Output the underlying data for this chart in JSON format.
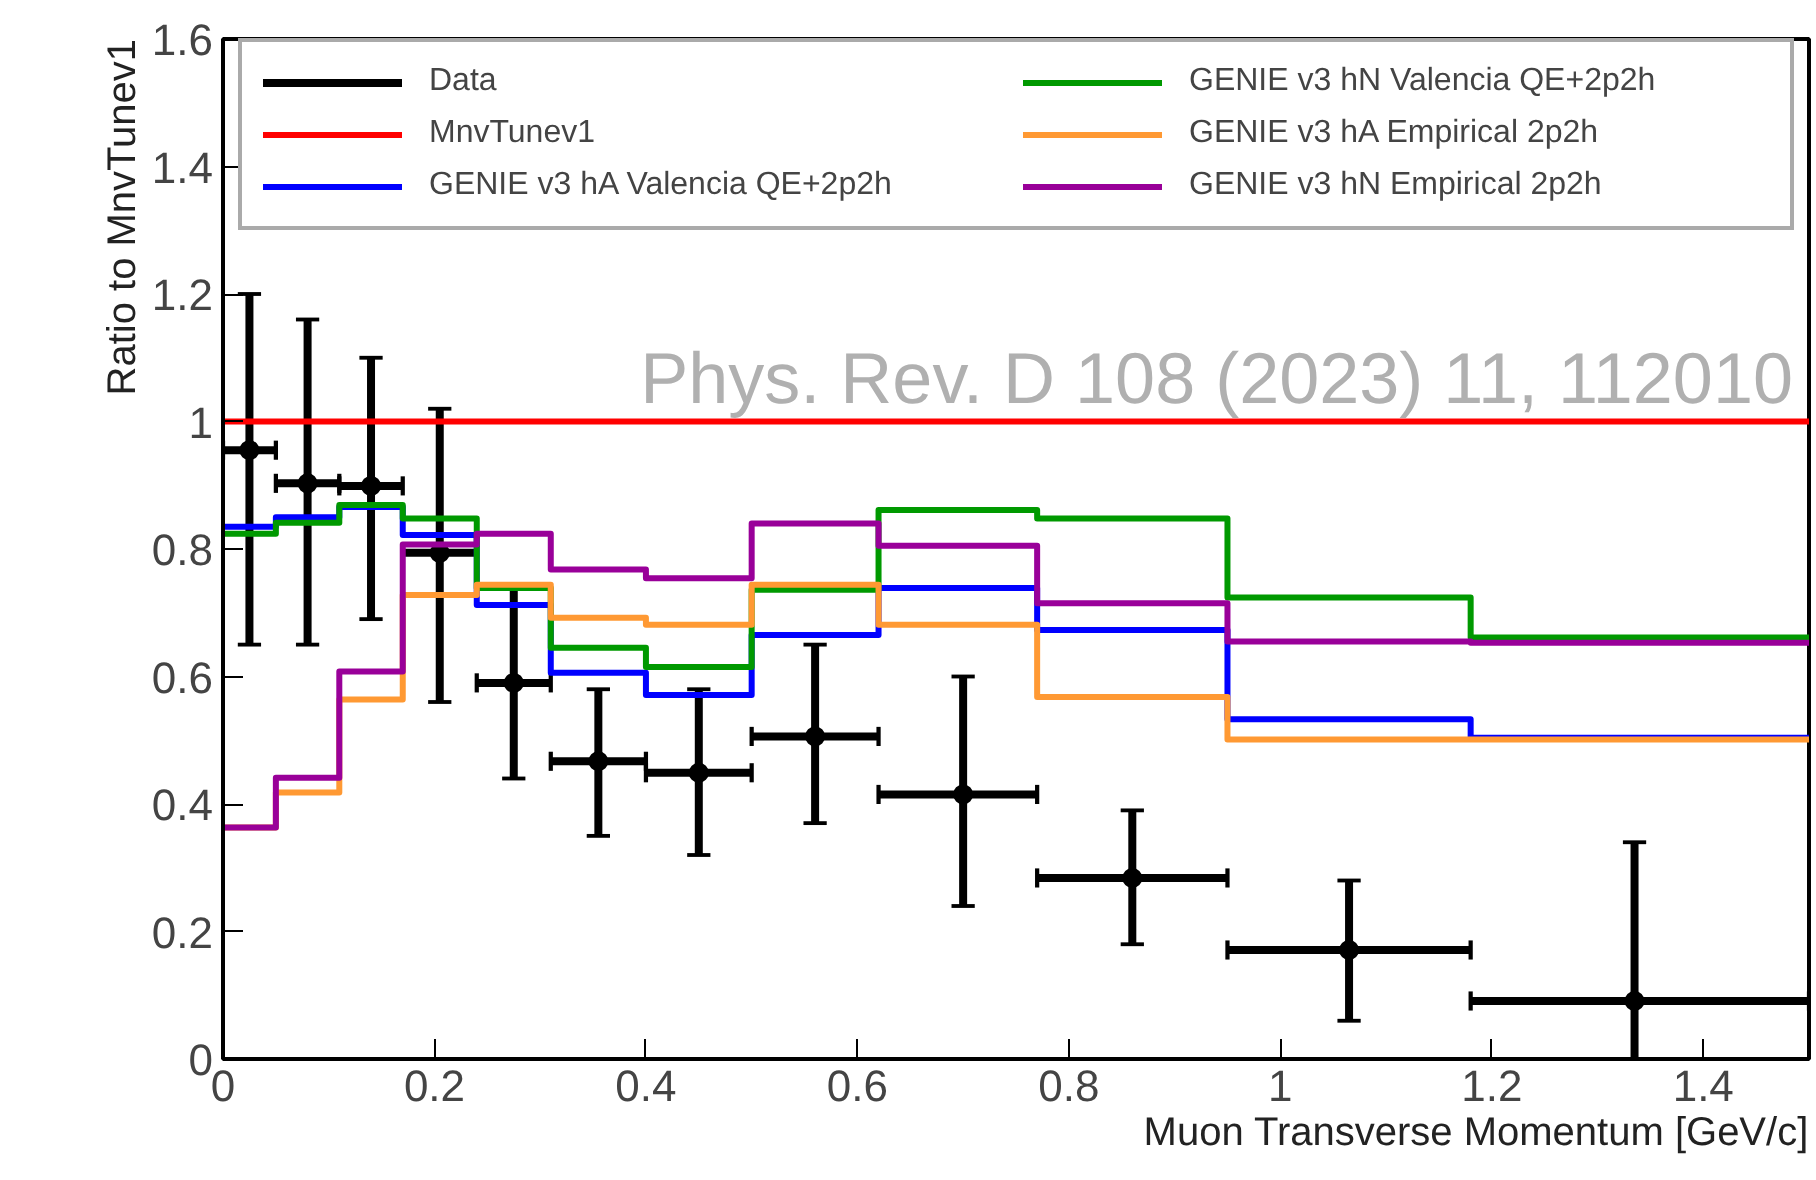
{
  "chart_data": {
    "type": "histogram",
    "xlabel": "Muon Transverse Momentum [GeV/c]",
    "ylabel": "Ratio to MnvTunev1",
    "annotations": [
      "Phys. Rev. D 108 (2023) 11, 112010"
    ],
    "bins": [
      0,
      0.05,
      0.11,
      0.17,
      0.24,
      0.31,
      0.4,
      0.5,
      0.62,
      0.77,
      0.95,
      1.18,
      1.5
    ],
    "xlim": [
      0,
      1.5
    ],
    "ylim": [
      0,
      1.6
    ],
    "xticks": [
      0,
      0.2,
      0.4,
      0.6,
      0.8,
      1,
      1.2,
      1.4
    ],
    "yticks": [
      0,
      0.2,
      0.4,
      0.6,
      0.8,
      1,
      1.2,
      1.4,
      1.6
    ],
    "grid": false,
    "legend": "top",
    "series": [
      {
        "name": "Data",
        "type": "scatter",
        "marker": "circle",
        "color": "#000000",
        "x": [
          0.025,
          0.08,
          0.14,
          0.205,
          0.275,
          0.355,
          0.45,
          0.56,
          0.7,
          0.86,
          1.065,
          1.335
        ],
        "values": [
          0.955,
          0.903,
          0.899,
          0.794,
          0.59,
          0.467,
          0.449,
          0.506,
          0.415,
          0.284,
          0.171,
          0.091
        ],
        "errors": [
          [
            0.65,
            1.2
          ],
          [
            0.65,
            1.16
          ],
          [
            0.69,
            1.1
          ],
          [
            0.56,
            1.02
          ],
          [
            0.44,
            0.74
          ],
          [
            0.35,
            0.58
          ],
          [
            0.32,
            0.58
          ],
          [
            0.37,
            0.65
          ],
          [
            0.24,
            0.6
          ],
          [
            0.18,
            0.39
          ],
          [
            0.06,
            0.28
          ],
          [
            0.0,
            0.34
          ]
        ],
        "xerrors": [
          [
            0,
            0.05
          ],
          [
            0.05,
            0.11
          ],
          [
            0.11,
            0.17
          ],
          [
            0.17,
            0.24
          ],
          [
            0.24,
            0.31
          ],
          [
            0.31,
            0.4
          ],
          [
            0.4,
            0.5
          ],
          [
            0.5,
            0.62
          ],
          [
            0.62,
            0.77
          ],
          [
            0.77,
            0.95
          ],
          [
            0.95,
            1.18
          ],
          [
            1.18,
            1.5
          ]
        ]
      },
      {
        "name": "MnvTunev1",
        "type": "line",
        "color": "#ff0000",
        "x": [
          0,
          1.5
        ],
        "values": [
          1,
          1
        ]
      },
      {
        "name": "GENIE v3 hA Valencia QE+2p2h",
        "color": "#0000ff",
        "values": [
          0.835,
          0.85,
          0.866,
          0.822,
          0.712,
          0.606,
          0.571,
          0.665,
          0.739,
          0.673,
          0.533,
          0.504
        ]
      },
      {
        "name": "GENIE v3 hN Valencia QE+2p2h",
        "color": "#009900",
        "values": [
          0.824,
          0.841,
          0.869,
          0.848,
          0.739,
          0.645,
          0.615,
          0.736,
          0.861,
          0.848,
          0.724,
          0.661
        ]
      },
      {
        "name": "GENIE v3 hA Empirical 2p2h",
        "color": "#ff9933",
        "values": [
          0.363,
          0.418,
          0.564,
          0.728,
          0.744,
          0.692,
          0.681,
          0.744,
          0.681,
          0.568,
          0.501,
          0.501
        ]
      },
      {
        "name": "GENIE v3 hN Empirical 2p2h",
        "color": "#990099",
        "values": [
          0.363,
          0.441,
          0.608,
          0.807,
          0.824,
          0.768,
          0.754,
          0.84,
          0.805,
          0.715,
          0.655,
          0.653
        ]
      }
    ]
  }
}
